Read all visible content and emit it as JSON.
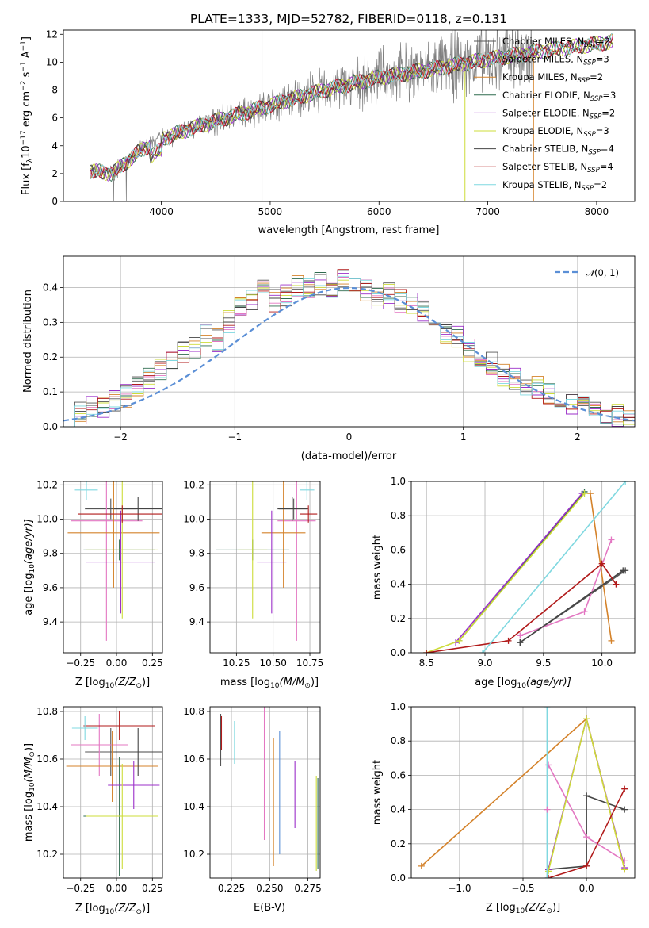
{
  "figure": {
    "title": "PLATE=1333, MJD=52782, FIBERID=0118, z=0.131"
  },
  "models": [
    {
      "name": "Chabrier MILES, N",
      "sub": "SSP",
      "eq": "=2",
      "color": "#555555"
    },
    {
      "name": "Salpeter MILES, N",
      "sub": "SSP",
      "eq": "=3",
      "color": "#e377c2"
    },
    {
      "name": "Kroupa MILES, N",
      "sub": "SSP",
      "eq": "=2",
      "color": "#d4822a"
    },
    {
      "name": "Chabrier ELODIE, N",
      "sub": "SSP",
      "eq": "=3",
      "color": "#2f6b4f"
    },
    {
      "name": "Salpeter ELODIE, N",
      "sub": "SSP",
      "eq": "=2",
      "color": "#9b2fc9"
    },
    {
      "name": "Kroupa ELODIE, N",
      "sub": "SSP",
      "eq": "=3",
      "color": "#cddc39"
    },
    {
      "name": "Chabrier STELIB, N",
      "sub": "SSP",
      "eq": "=4",
      "color": "#444444"
    },
    {
      "name": "Salpeter STELIB, N",
      "sub": "SSP",
      "eq": "=4",
      "color": "#b11a1a"
    },
    {
      "name": "Kroupa STELIB, N",
      "sub": "SSP",
      "eq": "=2",
      "color": "#7fd8e0"
    }
  ],
  "chart_data": [
    {
      "id": "spectrum",
      "type": "line",
      "xlabel": "wavelength [Angstrom, rest frame]",
      "ylabel_parts": [
        "Flux [f",
        "λ",
        "10",
        "−17",
        " erg cm",
        "−2",
        " s",
        "−1",
        " A",
        "−1",
        "]"
      ],
      "xlim": [
        3100,
        8350
      ],
      "ylim": [
        0,
        12.3
      ],
      "xticks": [
        4000,
        5000,
        6000,
        7000,
        8000
      ],
      "yticks": [
        0,
        2,
        4,
        6,
        8,
        10,
        12
      ],
      "continuum": {
        "x": [
          3350,
          3550,
          3800,
          4000,
          4300,
          4600,
          5000,
          5500,
          6000,
          6500,
          7000,
          7500,
          8000,
          8150
        ],
        "y": [
          2.2,
          2.0,
          3.6,
          4.5,
          5.3,
          6.0,
          6.9,
          8.0,
          8.9,
          9.5,
          10.2,
          10.8,
          11.3,
          11.5
        ]
      },
      "data_color": "#808080"
    },
    {
      "id": "residuals",
      "type": "line",
      "xlabel": "(data-model)/error",
      "ylabel": "Normed distribution",
      "xlim": [
        -2.5,
        2.5
      ],
      "ylim": [
        0,
        0.49
      ],
      "xticks": [
        -2,
        -1,
        0,
        1,
        2
      ],
      "xticklabels": [
        "−2",
        "−1",
        "0",
        "1",
        "2"
      ],
      "yticks": [
        0.0,
        0.1,
        0.2,
        0.3,
        0.4
      ],
      "yticklabels": [
        "0.0",
        "0.1",
        "0.2",
        "0.3",
        "0.4"
      ],
      "gaussian_label_parts": [
        "𝒩",
        "(0, 1)"
      ],
      "gaussian_color": "#5b8fd6",
      "bins": [
        -2.5,
        -2.4,
        -2.3,
        -2.2,
        -2.1,
        -2.0,
        -1.9,
        -1.8,
        -1.7,
        -1.6,
        -1.5,
        -1.4,
        -1.3,
        -1.2,
        -1.1,
        -1.0,
        -0.9,
        -0.8,
        -0.7,
        -0.6,
        -0.5,
        -0.4,
        -0.3,
        -0.2,
        -0.1,
        0.0,
        0.1,
        0.2,
        0.3,
        0.4,
        0.5,
        0.6,
        0.7,
        0.8,
        0.9,
        1.0,
        1.1,
        1.2,
        1.3,
        1.4,
        1.5,
        1.6,
        1.7,
        1.8,
        1.9,
        2.0,
        2.1,
        2.2,
        2.3,
        2.4,
        2.5
      ],
      "hist_base": [
        0.03,
        0.04,
        0.06,
        0.05,
        0.07,
        0.09,
        0.12,
        0.14,
        0.16,
        0.19,
        0.21,
        0.23,
        0.26,
        0.25,
        0.3,
        0.34,
        0.37,
        0.39,
        0.36,
        0.38,
        0.4,
        0.39,
        0.41,
        0.4,
        0.42,
        0.42,
        0.39,
        0.37,
        0.38,
        0.36,
        0.35,
        0.33,
        0.3,
        0.27,
        0.26,
        0.22,
        0.19,
        0.18,
        0.15,
        0.14,
        0.12,
        0.11,
        0.09,
        0.08,
        0.07,
        0.06,
        0.05,
        0.04,
        0.03,
        0.02
      ]
    },
    {
      "id": "age-vs-Z",
      "type": "scatter",
      "xlabel_parts": [
        "Z [log",
        "10",
        "(Z/Z",
        "⊙",
        ")]"
      ],
      "ylabel_parts": [
        "age  [log",
        "10",
        "(age/yr)]"
      ],
      "xlim": [
        -0.37,
        0.32
      ],
      "ylim": [
        9.22,
        10.22
      ],
      "xticks": [
        -0.25,
        0.0,
        0.25
      ],
      "xticklabels": [
        "−0.25",
        "0.00",
        "0.25"
      ],
      "yticks": [
        9.4,
        9.6,
        9.8,
        10.0,
        10.2
      ],
      "yticklabels": [
        "9.4",
        "9.6",
        "9.8",
        "10.0",
        "10.2"
      ],
      "points": [
        {
          "x": -0.04,
          "y": 10.06,
          "xerr": 0.18,
          "yerr": 0.06,
          "color": "#555555"
        },
        {
          "x": -0.07,
          "y": 9.99,
          "xerr": 0.25,
          "yerr": 0.7,
          "color": "#e377c2"
        },
        {
          "x": -0.02,
          "y": 9.92,
          "xerr": 0.32,
          "yerr": 0.32,
          "color": "#d4822a"
        },
        {
          "x": 0.02,
          "y": 9.82,
          "xerr": 0.25,
          "yerr": 0.06,
          "color": "#2f6b4f"
        },
        {
          "x": 0.03,
          "y": 9.75,
          "xerr": 0.24,
          "yerr": 0.3,
          "color": "#9b2fc9"
        },
        {
          "x": 0.04,
          "y": 9.82,
          "xerr": 0.25,
          "yerr": 0.4,
          "color": "#cddc39"
        },
        {
          "x": 0.15,
          "y": 10.06,
          "xerr": 0.17,
          "yerr": 0.07,
          "color": "#444444"
        },
        {
          "x": 0.04,
          "y": 10.03,
          "xerr": 0.31,
          "yerr": 0.05,
          "color": "#b11a1a"
        },
        {
          "x": -0.21,
          "y": 10.17,
          "xerr": 0.08,
          "yerr": 0.06,
          "color": "#7fd8e0"
        }
      ]
    },
    {
      "id": "age-vs-mass",
      "type": "scatter",
      "xlabel_parts": [
        "mass [log",
        "10",
        "(M/M",
        "⊙",
        ")]"
      ],
      "xlim": [
        10.07,
        10.82
      ],
      "ylim": [
        9.22,
        10.22
      ],
      "xticks": [
        10.25,
        10.5,
        10.75
      ],
      "xticklabels": [
        "10.25",
        "10.50",
        "10.75"
      ],
      "yticks": [
        9.4,
        9.6,
        9.8,
        10.0,
        10.2
      ],
      "yticklabels": [
        "9.4",
        "9.6",
        "9.8",
        "10.0",
        "10.2"
      ],
      "points": [
        {
          "x": 10.64,
          "y": 10.06,
          "xerr": 0.1,
          "yerr": 0.06,
          "color": "#555555"
        },
        {
          "x": 10.66,
          "y": 9.99,
          "xerr": 0.13,
          "yerr": 0.7,
          "color": "#e377c2"
        },
        {
          "x": 10.57,
          "y": 9.92,
          "xerr": 0.15,
          "yerr": 0.32,
          "color": "#d4822a"
        },
        {
          "x": 10.36,
          "y": 9.82,
          "xerr": 0.25,
          "yerr": 0.06,
          "color": "#2f6b4f"
        },
        {
          "x": 10.49,
          "y": 9.75,
          "xerr": 0.1,
          "yerr": 0.3,
          "color": "#9b2fc9"
        },
        {
          "x": 10.36,
          "y": 9.82,
          "xerr": 0.1,
          "yerr": 0.4,
          "color": "#cddc39"
        },
        {
          "x": 10.63,
          "y": 10.06,
          "xerr": 0.1,
          "yerr": 0.07,
          "color": "#444444"
        },
        {
          "x": 10.74,
          "y": 10.03,
          "xerr": 0.06,
          "yerr": 0.05,
          "color": "#b11a1a"
        },
        {
          "x": 10.73,
          "y": 10.17,
          "xerr": 0.05,
          "yerr": 0.06,
          "color": "#7fd8e0"
        }
      ]
    },
    {
      "id": "mass-weight-vs-age",
      "type": "line",
      "xlabel_parts": [
        "age  [log",
        "10",
        "(age/yr)]"
      ],
      "ylabel": "mass weight",
      "xlim": [
        8.37,
        10.28
      ],
      "ylim": [
        0,
        1
      ],
      "xticks": [
        8.5,
        9.0,
        9.5,
        10.0
      ],
      "xticklabels": [
        "8.5",
        "9.0",
        "9.5",
        "10.0"
      ],
      "yticks": [
        0.0,
        0.2,
        0.4,
        0.6,
        0.8,
        1.0
      ],
      "yticklabels": [
        "0.0",
        "0.2",
        "0.4",
        "0.6",
        "0.8",
        "1.0"
      ],
      "series": [
        {
          "color": "#555555",
          "x": [
            9.3,
            10.2
          ],
          "y": [
            0.06,
            0.48
          ]
        },
        {
          "color": "#e377c2",
          "x": [
            9.3,
            9.85,
            10.08
          ],
          "y": [
            0.1,
            0.24,
            0.66
          ]
        },
        {
          "color": "#d4822a",
          "x": [
            9.9,
            10.08
          ],
          "y": [
            0.93,
            0.07
          ]
        },
        {
          "color": "#2f6b4f",
          "x": [
            8.78,
            9.85
          ],
          "y": [
            0.07,
            0.94
          ]
        },
        {
          "color": "#9b2fc9",
          "x": [
            8.75,
            9.83
          ],
          "y": [
            0.06,
            0.93
          ]
        },
        {
          "color": "#cddc39",
          "x": [
            8.5,
            8.78,
            9.85
          ],
          "y": [
            0.0,
            0.07,
            0.93
          ]
        },
        {
          "color": "#444444",
          "x": [
            9.3,
            10.18
          ],
          "y": [
            0.06,
            0.48
          ]
        },
        {
          "color": "#b11a1a",
          "x": [
            8.5,
            9.2,
            10.0,
            10.12
          ],
          "y": [
            0.0,
            0.07,
            0.52,
            0.4
          ]
        },
        {
          "color": "#7fd8e0",
          "x": [
            8.98,
            10.2
          ],
          "y": [
            0.0,
            1.0
          ]
        }
      ]
    },
    {
      "id": "mass-vs-Z",
      "type": "scatter",
      "xlabel_parts": [
        "Z [log",
        "10",
        "(Z/Z",
        "⊙",
        ")]"
      ],
      "ylabel_parts": [
        "mass [log",
        "10",
        "(M/M",
        "⊙",
        ")]"
      ],
      "xlim": [
        -0.37,
        0.32
      ],
      "ylim": [
        10.1,
        10.82
      ],
      "xticks": [
        -0.25,
        0.0,
        0.25
      ],
      "xticklabels": [
        "−0.25",
        "0.00",
        "0.25"
      ],
      "yticks": [
        10.2,
        10.4,
        10.6,
        10.8
      ],
      "yticklabels": [
        "10.2",
        "10.4",
        "10.6",
        "10.8"
      ],
      "points": [
        {
          "x": -0.04,
          "y": 10.63,
          "xerr": 0.18,
          "yerr": 0.1,
          "color": "#555555"
        },
        {
          "x": -0.12,
          "y": 10.66,
          "xerr": 0.2,
          "yerr": 0.13,
          "color": "#e377c2"
        },
        {
          "x": -0.03,
          "y": 10.57,
          "xerr": 0.32,
          "yerr": 0.15,
          "color": "#d4822a"
        },
        {
          "x": 0.02,
          "y": 10.36,
          "xerr": 0.25,
          "yerr": 0.25,
          "color": "#2f6b4f"
        },
        {
          "x": 0.12,
          "y": 10.49,
          "xerr": 0.18,
          "yerr": 0.1,
          "color": "#9b2fc9"
        },
        {
          "x": 0.04,
          "y": 10.36,
          "xerr": 0.25,
          "yerr": 0.22,
          "color": "#cddc39"
        },
        {
          "x": 0.15,
          "y": 10.63,
          "xerr": 0.17,
          "yerr": 0.1,
          "color": "#444444"
        },
        {
          "x": 0.02,
          "y": 10.74,
          "xerr": 0.25,
          "yerr": 0.06,
          "color": "#b11a1a"
        },
        {
          "x": -0.22,
          "y": 10.73,
          "xerr": 0.09,
          "yerr": 0.05,
          "color": "#7fd8e0"
        }
      ]
    },
    {
      "id": "mass-vs-EBV",
      "type": "scatter",
      "xlabel": "E(B-V)",
      "xlim": [
        0.211,
        0.283
      ],
      "ylim": [
        10.1,
        10.82
      ],
      "xticks": [
        0.225,
        0.25,
        0.275
      ],
      "xticklabels": [
        "0.225",
        "0.250",
        "0.275"
      ],
      "yticks": [
        10.2,
        10.4,
        10.6,
        10.8
      ],
      "yticklabels": [
        "10.2",
        "10.4",
        "10.6",
        "10.8"
      ],
      "points": [
        {
          "x": 0.218,
          "y": 10.68,
          "yerr": 0.11,
          "color": "#555555"
        },
        {
          "x": 0.2185,
          "y": 10.71,
          "yerr": 0.07,
          "color": "#b11a1a"
        },
        {
          "x": 0.227,
          "y": 10.67,
          "yerr": 0.09,
          "color": "#7fd8e0"
        },
        {
          "x": 0.2465,
          "y": 10.58,
          "yerr": 0.32,
          "color": "#e377c2"
        },
        {
          "x": 0.2525,
          "y": 10.42,
          "yerr": 0.27,
          "color": "#d4822a"
        },
        {
          "x": 0.2565,
          "y": 10.46,
          "yerr": 0.26,
          "color": "#5b8fd6"
        },
        {
          "x": 0.2665,
          "y": 10.45,
          "yerr": 0.14,
          "color": "#9b2fc9"
        },
        {
          "x": 0.2805,
          "y": 10.33,
          "yerr": 0.2,
          "color": "#cddc39"
        },
        {
          "x": 0.2815,
          "y": 10.33,
          "yerr": 0.19,
          "color": "#2f6b4f"
        }
      ]
    },
    {
      "id": "mass-weight-vs-Z",
      "type": "line",
      "xlabel_parts": [
        "Z [log",
        "10",
        "(Z/Z",
        "⊙",
        ")]"
      ],
      "ylabel": "mass weight",
      "xlim": [
        -1.38,
        0.38
      ],
      "ylim": [
        0,
        1
      ],
      "xticks": [
        -1.0,
        -0.5,
        0.0
      ],
      "xticklabels": [
        "−1.0",
        "−0.5",
        "0.0"
      ],
      "yticks": [
        0.0,
        0.2,
        0.4,
        0.6,
        0.8,
        1.0
      ],
      "yticklabels": [
        "0.0",
        "0.2",
        "0.4",
        "0.6",
        "0.8",
        "1.0"
      ],
      "series": [
        {
          "color": "#444444",
          "x": [
            -0.3,
            0.0,
            0.0,
            0.0,
            0.3
          ],
          "y": [
            0.05,
            0.07,
            0.48,
            0.48,
            0.4
          ]
        },
        {
          "color": "#e377c2",
          "x": [
            -0.3,
            0.0,
            0.3
          ],
          "y": [
            0.66,
            0.24,
            0.1
          ]
        },
        {
          "color": "#d4822a",
          "x": [
            -1.3,
            0.0,
            0.3
          ],
          "y": [
            0.07,
            0.93,
            0.05
          ]
        },
        {
          "color": "#9b2fc9",
          "x": [
            -0.3,
            0.0,
            0.3
          ],
          "y": [
            0.05,
            0.93,
            0.06
          ]
        },
        {
          "color": "#cddc39",
          "x": [
            -0.3,
            0.0,
            0.3
          ],
          "y": [
            0.04,
            0.93,
            0.05
          ]
        },
        {
          "color": "#b11a1a",
          "x": [
            -0.3,
            0.0,
            0.3
          ],
          "y": [
            0.0,
            0.07,
            0.52
          ]
        },
        {
          "color": "#7fd8e0",
          "x": [
            -0.31,
            -0.31
          ],
          "y": [
            0.0,
            1.0
          ]
        },
        {
          "color": "#e377c2",
          "x": [
            -0.31
          ],
          "y": [
            0.4
          ]
        }
      ]
    }
  ]
}
